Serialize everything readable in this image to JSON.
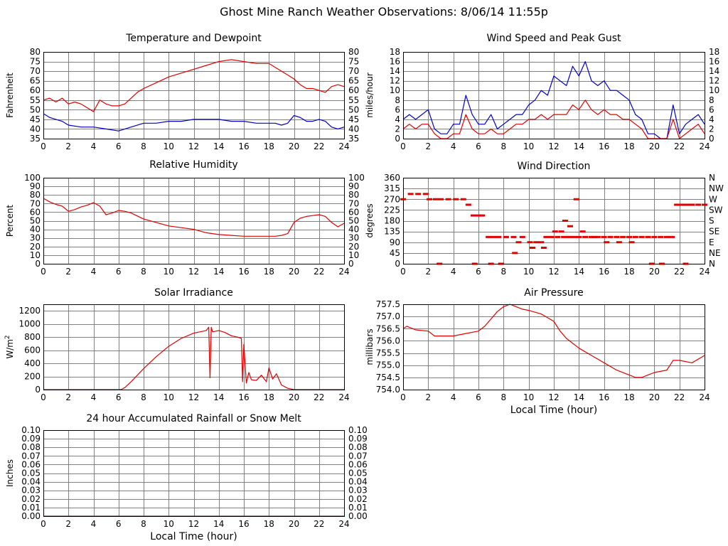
{
  "page": {
    "title": "Ghost Mine Ranch Weather Observations: 8/06/14 11:55p"
  },
  "colors": {
    "primary": "#e00000",
    "secondary": "#0000c8",
    "grid": "#808080",
    "frame": "#000000"
  },
  "chart_data": [
    {
      "id": "temperature",
      "type": "line",
      "title": "Temperature and Dewpoint",
      "ylabel": "Fahrenheit",
      "xlabel": "",
      "xlim": [
        0,
        24
      ],
      "ylim": [
        35,
        80
      ],
      "xticks": [
        0,
        2,
        4,
        6,
        8,
        10,
        12,
        14,
        16,
        18,
        20,
        22,
        24
      ],
      "yticks": [
        35,
        40,
        45,
        50,
        55,
        60,
        65,
        70,
        75,
        80
      ],
      "ytick_labels": [
        "35",
        "40",
        "45",
        "50",
        "55",
        "60",
        "65",
        "70",
        "75",
        "80"
      ],
      "right_axis": true,
      "grid": true,
      "series": [
        {
          "color": "#e00000",
          "x": [
            0,
            0.5,
            1,
            1.5,
            2,
            2.5,
            3,
            3.5,
            4,
            4.5,
            5,
            5.5,
            6,
            6.5,
            7,
            7.5,
            8,
            9,
            10,
            11,
            12,
            13,
            14,
            15,
            16,
            17,
            18,
            18.5,
            19,
            19.5,
            20,
            20.5,
            21,
            21.5,
            22,
            22.5,
            23,
            23.5,
            24
          ],
          "y": [
            55,
            56,
            54,
            56,
            53,
            54,
            53,
            51,
            49,
            55,
            53,
            52,
            52,
            53,
            56,
            59,
            61,
            64,
            67,
            69,
            71,
            73,
            75,
            76,
            75,
            74,
            74,
            72,
            70,
            68,
            66,
            63,
            61,
            61,
            60,
            59,
            62,
            63,
            62
          ]
        },
        {
          "color": "#0000c8",
          "x": [
            0,
            0.5,
            1,
            1.5,
            2,
            3,
            4,
            5,
            6,
            6.5,
            7,
            8,
            9,
            10,
            11,
            12,
            13,
            14,
            15,
            16,
            17,
            18,
            18.5,
            19,
            19.5,
            20,
            20.5,
            21,
            21.5,
            22,
            22.5,
            23,
            23.5,
            24
          ],
          "y": [
            48,
            46,
            45,
            44,
            42,
            41,
            41,
            40,
            39,
            40,
            41,
            43,
            43,
            44,
            44,
            45,
            45,
            45,
            44,
            44,
            43,
            43,
            43,
            42,
            43,
            47,
            46,
            44,
            44,
            45,
            44,
            41,
            40,
            41
          ]
        }
      ]
    },
    {
      "id": "wind-speed",
      "type": "line",
      "title": "Wind Speed and Peak Gust",
      "ylabel": "miles/hour",
      "xlabel": "",
      "xlim": [
        0,
        24
      ],
      "ylim": [
        0,
        18
      ],
      "xticks": [
        0,
        2,
        4,
        6,
        8,
        10,
        12,
        14,
        16,
        18,
        20,
        22,
        24
      ],
      "yticks": [
        0,
        2,
        4,
        6,
        8,
        10,
        12,
        14,
        16,
        18
      ],
      "ytick_labels": [
        "0",
        "2",
        "4",
        "6",
        "8",
        "10",
        "12",
        "14",
        "16",
        "18"
      ],
      "right_axis": true,
      "grid": true,
      "series": [
        {
          "color": "#0000c8",
          "x": [
            0,
            0.5,
            1,
            1.5,
            2,
            2.5,
            3,
            3.5,
            4,
            4.5,
            5,
            5.5,
            6,
            6.5,
            7,
            7.5,
            8,
            8.5,
            9,
            9.5,
            10,
            10.5,
            11,
            11.5,
            12,
            12.5,
            13,
            13.5,
            14,
            14.5,
            15,
            15.5,
            16,
            16.5,
            17,
            17.5,
            18,
            18.5,
            19,
            19.5,
            20,
            20.5,
            21,
            21.5,
            22,
            22.5,
            23,
            23.5,
            24
          ],
          "y": [
            4,
            5,
            4,
            5,
            6,
            2,
            1,
            1,
            3,
            3,
            9,
            5,
            3,
            3,
            5,
            2,
            3,
            4,
            5,
            5,
            7,
            8,
            10,
            9,
            13,
            12,
            11,
            15,
            13,
            16,
            12,
            11,
            12,
            10,
            10,
            9,
            8,
            5,
            4,
            1,
            1,
            0,
            0,
            7,
            1,
            3,
            4,
            5,
            3
          ]
        },
        {
          "color": "#e00000",
          "x": [
            0,
            0.5,
            1,
            1.5,
            2,
            2.5,
            3,
            3.5,
            4,
            4.5,
            5,
            5.5,
            6,
            6.5,
            7,
            7.5,
            8,
            8.5,
            9,
            9.5,
            10,
            10.5,
            11,
            11.5,
            12,
            12.5,
            13,
            13.5,
            14,
            14.5,
            15,
            15.5,
            16,
            16.5,
            17,
            17.5,
            18,
            18.5,
            19,
            19.5,
            20,
            20.5,
            21,
            21.5,
            22,
            22.5,
            23,
            23.5,
            24
          ],
          "y": [
            2,
            3,
            2,
            3,
            3,
            1,
            0,
            0,
            1,
            1,
            5,
            2,
            1,
            1,
            2,
            1,
            1,
            2,
            3,
            3,
            4,
            4,
            5,
            4,
            5,
            5,
            5,
            7,
            6,
            8,
            6,
            5,
            6,
            5,
            5,
            4,
            4,
            3,
            2,
            0,
            0,
            0,
            0,
            4,
            0,
            1,
            2,
            3,
            1
          ]
        }
      ]
    },
    {
      "id": "humidity",
      "type": "line",
      "title": "Relative Humidity",
      "ylabel": "Percent",
      "xlabel": "",
      "xlim": [
        0,
        24
      ],
      "ylim": [
        0,
        100
      ],
      "xticks": [
        0,
        2,
        4,
        6,
        8,
        10,
        12,
        14,
        16,
        18,
        20,
        22,
        24
      ],
      "yticks": [
        0,
        10,
        20,
        30,
        40,
        50,
        60,
        70,
        80,
        90,
        100
      ],
      "ytick_labels": [
        "0",
        "10",
        "20",
        "30",
        "40",
        "50",
        "60",
        "70",
        "80",
        "90",
        "100"
      ],
      "right_axis": true,
      "grid": true,
      "series": [
        {
          "color": "#e00000",
          "x": [
            0,
            0.5,
            1,
            1.5,
            2,
            2.5,
            3,
            3.5,
            4,
            4.5,
            5,
            5.5,
            6,
            6.5,
            7,
            8,
            9,
            10,
            11,
            12,
            13,
            14,
            15,
            16,
            17,
            18,
            18.5,
            19,
            19.5,
            20,
            20.5,
            21,
            21.5,
            22,
            22.5,
            23,
            23.5,
            24
          ],
          "y": [
            76,
            72,
            69,
            67,
            61,
            63,
            66,
            68,
            71,
            67,
            57,
            59,
            62,
            61,
            59,
            52,
            48,
            44,
            42,
            40,
            36,
            34,
            33,
            32,
            32,
            32,
            32,
            33,
            35,
            48,
            53,
            55,
            56,
            57,
            55,
            48,
            43,
            47
          ]
        }
      ]
    },
    {
      "id": "wind-direction",
      "type": "scatter",
      "title": "Wind Direction",
      "ylabel": "degrees",
      "xlabel": "",
      "xlim": [
        0,
        24
      ],
      "ylim": [
        0,
        360
      ],
      "xticks": [
        0,
        2,
        4,
        6,
        8,
        10,
        12,
        14,
        16,
        18,
        20,
        22,
        24
      ],
      "yticks": [
        0,
        45,
        90,
        135,
        180,
        225,
        270,
        315,
        360
      ],
      "ytick_labels": [
        "0",
        "45",
        "90",
        "135",
        "180",
        "225",
        "270",
        "315",
        "360"
      ],
      "right_tick_labels": [
        "N",
        "NE",
        "E",
        "SE",
        "S",
        "SW",
        "W",
        "NW",
        "N"
      ],
      "right_axis": true,
      "grid": true,
      "series": [
        {
          "color": "#e00000",
          "marker": "dash",
          "x": [
            0,
            0.6,
            1.2,
            1.8,
            2.1,
            2.6,
            3.0,
            3.6,
            4.2,
            4.8,
            5.2,
            5.6,
            6.0,
            6.3,
            6.8,
            7.2,
            7.6,
            8.2,
            8.8,
            9.5,
            10.1,
            10.6,
            11.0,
            11.4,
            11.8,
            12.3,
            12.8,
            13.2,
            13.6,
            14.0,
            14.5,
            15.0,
            15.5,
            16.0,
            16.5,
            17.0,
            17.5,
            18.0,
            18.5,
            19.0,
            19.5,
            20.0,
            20.5,
            21.0,
            21.4,
            21.8,
            22.2,
            22.6,
            23.0,
            23.5,
            24.0,
            2.9,
            5.7,
            7.0,
            7.8,
            19.8,
            20.6,
            22.5,
            13.8,
            12.6,
            11.2,
            10.3,
            9.2,
            8.9,
            12.1,
            14.3,
            15.2,
            16.2,
            17.2,
            18.2,
            12.9,
            13.3
          ],
          "y": [
            270,
            292,
            292,
            292,
            270,
            270,
            270,
            270,
            270,
            270,
            247,
            202,
            202,
            202,
            112,
            112,
            112,
            112,
            112,
            112,
            90,
            90,
            90,
            112,
            112,
            112,
            112,
            112,
            112,
            112,
            112,
            112,
            112,
            112,
            112,
            112,
            112,
            112,
            112,
            112,
            112,
            112,
            112,
            112,
            112,
            247,
            247,
            247,
            247,
            247,
            247,
            0,
            0,
            0,
            0,
            0,
            0,
            0,
            270,
            135,
            67,
            67,
            90,
            45,
            135,
            135,
            112,
            90,
            90,
            90,
            180,
            157
          ]
        }
      ]
    },
    {
      "id": "solar",
      "type": "line",
      "title": "Solar Irradiance",
      "ylabel": "W/m",
      "ylabel_sup": "2",
      "xlabel": "",
      "xlim": [
        0,
        24
      ],
      "ylim": [
        0,
        1300
      ],
      "xticks": [
        0,
        2,
        4,
        6,
        8,
        10,
        12,
        14,
        16,
        18,
        20,
        22,
        24
      ],
      "yticks": [
        0,
        200,
        400,
        600,
        800,
        1000,
        1200
      ],
      "ytick_labels": [
        "0",
        "200",
        "400",
        "600",
        "800",
        "1000",
        "1200"
      ],
      "right_axis": false,
      "grid": true,
      "series": [
        {
          "color": "#e00000",
          "x": [
            0,
            6.2,
            6.5,
            7,
            8,
            9,
            10,
            11,
            12,
            13,
            13.2,
            13.3,
            13.4,
            13.5,
            14,
            14.5,
            15,
            15.5,
            15.8,
            15.9,
            16,
            16.2,
            16.4,
            16.6,
            17,
            17.4,
            17.8,
            18,
            18.3,
            18.6,
            19,
            19.5,
            20,
            24
          ],
          "y": [
            0,
            0,
            30,
            120,
            320,
            500,
            660,
            780,
            860,
            900,
            950,
            180,
            950,
            880,
            900,
            870,
            820,
            800,
            780,
            120,
            690,
            100,
            260,
            150,
            140,
            220,
            120,
            330,
            160,
            240,
            70,
            20,
            0,
            0
          ]
        }
      ]
    },
    {
      "id": "pressure",
      "type": "line",
      "title": "Air Pressure",
      "ylabel": "millibars",
      "xlabel": "Local Time (hour)",
      "xlim": [
        0,
        24
      ],
      "ylim": [
        754.0,
        757.5
      ],
      "xticks": [
        0,
        2,
        4,
        6,
        8,
        10,
        12,
        14,
        16,
        18,
        20,
        22,
        24
      ],
      "yticks": [
        754.0,
        754.5,
        755.0,
        755.5,
        756.0,
        756.5,
        757.0,
        757.5
      ],
      "ytick_labels": [
        "754.0",
        "754.5",
        "755.0",
        "755.5",
        "756.0",
        "756.5",
        "757.0",
        "757.5"
      ],
      "right_axis": false,
      "grid": true,
      "series": [
        {
          "color": "#e00000",
          "x": [
            0,
            0.3,
            1,
            2,
            2.5,
            3,
            4,
            5,
            6,
            6.5,
            7,
            7.5,
            8,
            8.5,
            9,
            9.5,
            10,
            11,
            12,
            12.5,
            13,
            13.5,
            14,
            15,
            16,
            17,
            18,
            18.5,
            19,
            19.5,
            20,
            21,
            21.5,
            22,
            23,
            24
          ],
          "y": [
            756.5,
            756.6,
            756.45,
            756.4,
            756.2,
            756.2,
            756.2,
            756.3,
            756.4,
            756.6,
            756.9,
            757.2,
            757.4,
            757.5,
            757.4,
            757.3,
            757.25,
            757.1,
            756.8,
            756.4,
            756.1,
            755.9,
            755.7,
            755.4,
            755.1,
            754.8,
            754.6,
            754.5,
            754.5,
            754.6,
            754.7,
            754.8,
            755.2,
            755.2,
            755.1,
            755.4
          ]
        }
      ]
    },
    {
      "id": "rainfall",
      "type": "line",
      "title": "24 hour Accumulated Rainfall or Snow Melt",
      "ylabel": "Inches",
      "xlabel": "Local Time (hour)",
      "xlim": [
        0,
        24
      ],
      "ylim": [
        0,
        0.1
      ],
      "xticks": [
        0,
        2,
        4,
        6,
        8,
        10,
        12,
        14,
        16,
        18,
        20,
        22,
        24
      ],
      "yticks": [
        0,
        0.01,
        0.02,
        0.03,
        0.04,
        0.05,
        0.06,
        0.07,
        0.08,
        0.09,
        0.1
      ],
      "ytick_labels": [
        "0.00",
        "0.01",
        "0.02",
        "0.03",
        "0.04",
        "0.05",
        "0.06",
        "0.07",
        "0.08",
        "0.09",
        "0.10"
      ],
      "right_axis": true,
      "grid": true,
      "series": [
        {
          "color": "#e00000",
          "x": [
            0,
            24
          ],
          "y": [
            0,
            0
          ]
        }
      ]
    }
  ]
}
